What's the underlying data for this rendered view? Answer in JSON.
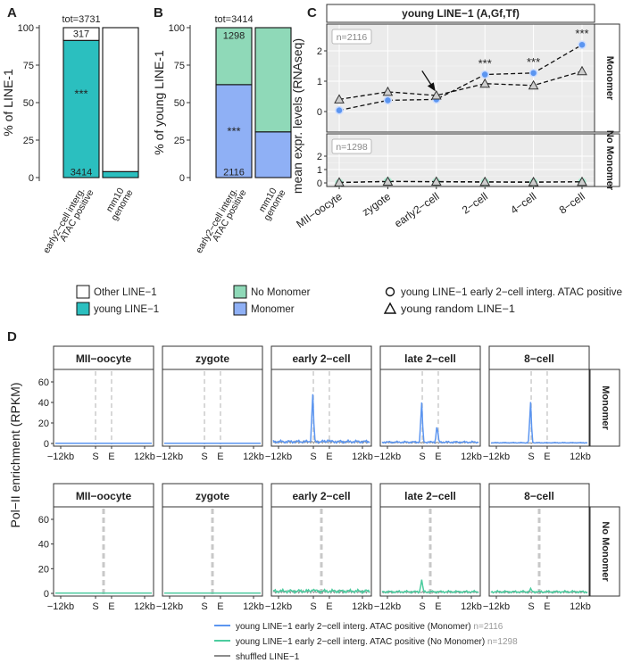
{
  "colors": {
    "teal": "#2bbfbf",
    "white": "#ffffff",
    "mint": "#8fd9b8",
    "blue": "#8fb0f5",
    "line_blue": "#5b95f0",
    "line_green": "#4ccc9f",
    "shuffled": "#8c8c8c",
    "panel_bg": "#ebebeb",
    "grid": "#ffffff",
    "dash": "#c8c8c8",
    "strip_bg": "#ffffff"
  },
  "chart_data": [
    {
      "panel": "A",
      "type": "bar",
      "stacked": true,
      "title_annotation": "tot=3731",
      "ylabel": "% of LINE-1",
      "ylim": [
        0,
        100
      ],
      "yticks": [
        0,
        25,
        50,
        75,
        100
      ],
      "categories": [
        [
          "early2−cell interg.",
          "ATAC positive"
        ],
        [
          "mm10",
          "genome"
        ]
      ],
      "series": [
        {
          "name": "young LINE-1",
          "color_key": "teal",
          "values": [
            91.5,
            4
          ]
        },
        {
          "name": "Other LINE-1",
          "color_key": "white",
          "values": [
            8.5,
            96
          ]
        }
      ],
      "bar_labels": [
        {
          "text": "317",
          "category": 0,
          "y": 96
        },
        {
          "text": "***",
          "category": 0,
          "y": 58
        },
        {
          "text": "3414",
          "category": 0,
          "y": 4
        }
      ]
    },
    {
      "panel": "B",
      "type": "bar",
      "stacked": true,
      "title_annotation": "tot=3414",
      "ylabel": "% of young LINE-1",
      "ylim": [
        0,
        100
      ],
      "yticks": [
        0,
        25,
        50,
        75,
        100
      ],
      "categories": [
        [
          "early2−cell interg.",
          "ATAC positive"
        ],
        [
          "mm10",
          "genome"
        ]
      ],
      "series": [
        {
          "name": "Monomer",
          "color_key": "blue",
          "values": [
            62,
            30.5
          ]
        },
        {
          "name": "No Monomer",
          "color_key": "mint",
          "values": [
            38,
            69.5
          ]
        }
      ],
      "bar_labels": [
        {
          "text": "1298",
          "category": 0,
          "y": 95
        },
        {
          "text": "***",
          "category": 0,
          "y": 33
        },
        {
          "text": "2116",
          "category": 0,
          "y": 4
        }
      ]
    },
    {
      "panel": "C",
      "type": "line",
      "title": "young LINE−1 (A,Gf,Tf)",
      "ylabel": "mean expr. levels (RNAseq)",
      "ylim": [
        -0.25,
        2.5
      ],
      "yticks": [
        0,
        1,
        2
      ],
      "categories": [
        "MII−oocyte",
        "zygote",
        "early2−cell",
        "2−cell",
        "4−cell",
        "8−cell"
      ],
      "facets": [
        {
          "strip": "Monomer",
          "n_label": "n=2116",
          "series": [
            {
              "name": "young LINE−1 early 2−cell interg. ATAC positive",
              "marker": "circle",
              "values": [
                0.04,
                0.37,
                0.4,
                1.22,
                1.27,
                2.2
              ]
            },
            {
              "name": "young random LINE−1",
              "marker": "triangle",
              "values": [
                0.4,
                0.65,
                0.53,
                0.92,
                0.86,
                1.33
              ]
            }
          ],
          "stars": [
            3,
            4,
            5
          ],
          "star_text": "***",
          "arrow_at": "early2−cell"
        },
        {
          "strip": "No Monomer",
          "n_label": "n=1298",
          "series": [
            {
              "name": "young LINE−1 early 2−cell interg. ATAC positive",
              "marker": "circle",
              "values": [
                0.02,
                0.12,
                0.08,
                0.06,
                0.05,
                0.08
              ]
            },
            {
              "name": "young random LINE−1",
              "marker": "triangle",
              "values": [
                0.04,
                0.1,
                0.1,
                0.08,
                0.07,
                0.08
              ]
            }
          ],
          "stars": [],
          "star_text": "***",
          "arrow_at": null
        }
      ]
    },
    {
      "panel": "D",
      "type": "line",
      "ylabel": "Pol−II enrichment (RPKM)",
      "ylim": [
        -2,
        70
      ],
      "yticks": [
        0,
        20,
        40,
        60
      ],
      "stages": [
        "MII−oocyte",
        "zygote",
        "early 2−cell",
        "late 2−cell",
        "8−cell"
      ],
      "xticks": [
        "−12kb",
        "S",
        "E",
        "12kb"
      ],
      "rows": [
        {
          "strip": "Monomer",
          "line_key": "line_blue",
          "peaks": [
            0,
            0,
            47,
            39,
            40
          ],
          "second_peaks": [
            0,
            0,
            2,
            16,
            0
          ],
          "noise": [
            0,
            0,
            3,
            2,
            0.8
          ]
        },
        {
          "strip": "No Monomer",
          "line_key": "line_green",
          "peaks": [
            0,
            0,
            2,
            10,
            2
          ],
          "second_peaks": [
            0,
            0,
            0,
            0,
            0
          ],
          "noise": [
            0,
            0,
            3,
            2,
            2
          ]
        }
      ]
    }
  ],
  "labels": {
    "panel_A": "A",
    "panel_B": "B",
    "panel_C": "C",
    "panel_D": "D",
    "strip_monomer": "Monomer",
    "strip_nomonomer": "No Monomer"
  },
  "legend_top": [
    {
      "text": "Other LINE−1",
      "swatch": "white"
    },
    {
      "text": "young LINE−1",
      "swatch": "teal"
    },
    {
      "text": "No Monomer",
      "swatch": "mint"
    },
    {
      "text": "Monomer",
      "swatch": "blue"
    },
    {
      "text": "young LINE−1 early 2−cell interg. ATAC positive",
      "shape": "circle"
    },
    {
      "text": "young random LINE−1",
      "shape": "triangle"
    }
  ],
  "legend_bottom": [
    {
      "text": "young LINE−1 early 2−cell interg. ATAC positive (Monomer)",
      "n": "n=2116",
      "color_key": "line_blue"
    },
    {
      "text": "young LINE−1 early 2−cell interg. ATAC positive (No Monomer)",
      "n": "n=1298",
      "color_key": "line_green"
    },
    {
      "text": "shuffled LINE−1",
      "n": "",
      "color_key": "shuffled"
    }
  ]
}
